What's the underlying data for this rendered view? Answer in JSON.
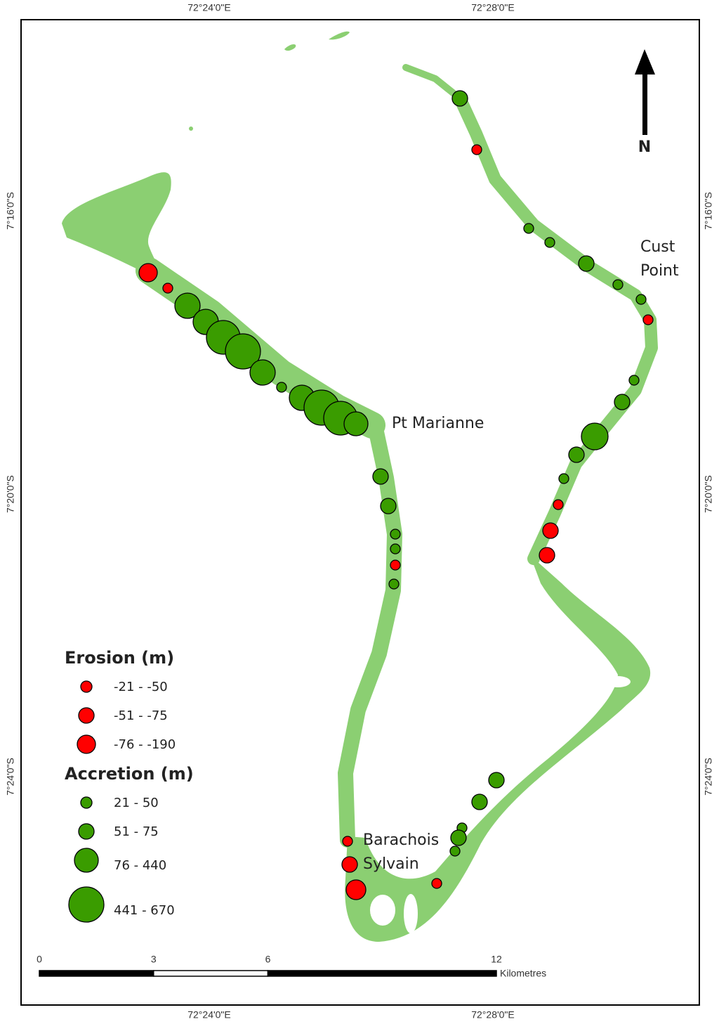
{
  "frame": {
    "top_labels": [
      "72°24'0\"E",
      "72°28'0\"E"
    ],
    "bottom_labels": [
      "72°24'0\"E",
      "72°28'0\"E"
    ],
    "left_labels": [
      "7°16'0\"S",
      "7°20'0\"S",
      "7°24'0\"S"
    ],
    "right_labels": [
      "7°16'0\"S",
      "7°20'0\"S",
      "7°24'0\"S"
    ]
  },
  "north_arrow": "N",
  "places": {
    "cust_point": [
      "Cust",
      "Point"
    ],
    "pt_marianne": "Pt Marianne",
    "barachois": "Barachois",
    "sylvain": "Sylvain"
  },
  "legend": {
    "erosion": {
      "title": "Erosion (m)",
      "items": [
        "-21 - -50",
        "-51 - -75",
        "-76 - -190"
      ]
    },
    "accretion": {
      "title": "Accretion (m)",
      "items": [
        "21 - 50",
        "51 - 75",
        "76 - 440",
        "441 - 670"
      ]
    }
  },
  "scale_bar": {
    "ticks": [
      0,
      3,
      6,
      12
    ],
    "unit": "Kilometres"
  }
}
